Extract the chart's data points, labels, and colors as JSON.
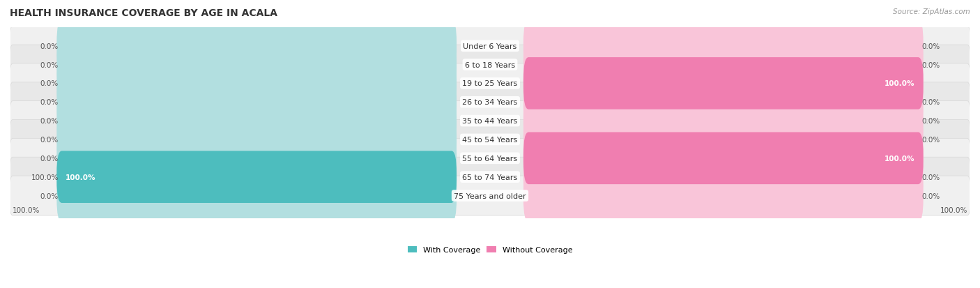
{
  "title": "HEALTH INSURANCE COVERAGE BY AGE IN ACALA",
  "source": "Source: ZipAtlas.com",
  "categories": [
    "Under 6 Years",
    "6 to 18 Years",
    "19 to 25 Years",
    "26 to 34 Years",
    "35 to 44 Years",
    "45 to 54 Years",
    "55 to 64 Years",
    "65 to 74 Years",
    "75 Years and older"
  ],
  "with_coverage": [
    0.0,
    0.0,
    0.0,
    0.0,
    0.0,
    0.0,
    0.0,
    100.0,
    0.0
  ],
  "without_coverage": [
    0.0,
    0.0,
    100.0,
    0.0,
    0.0,
    0.0,
    100.0,
    0.0,
    0.0
  ],
  "color_with": "#4dbdbe",
  "color_without": "#f07eb0",
  "color_with_light": "#b2dfe0",
  "color_without_light": "#f9c5d9",
  "row_bg_odd": "#f0f0f0",
  "row_bg_even": "#e8e8e8",
  "title_color": "#333333",
  "source_color": "#999999",
  "label_color": "#555555",
  "bar_max": 100.0,
  "bar_min_display": 8.0,
  "figwidth": 14.06,
  "figheight": 4.14,
  "dpi": 100
}
